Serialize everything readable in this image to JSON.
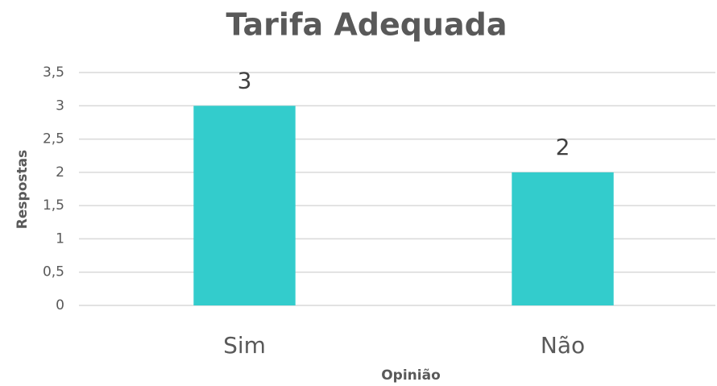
{
  "chart_data": {
    "type": "bar",
    "title": "Tarifa Adequada",
    "x_label": "Opinião",
    "y_label": "Respostas",
    "categories": [
      "Sim",
      "Não"
    ],
    "values": [
      3,
      2
    ],
    "color": "#33cccc",
    "ylim": [
      0,
      3.5
    ],
    "yticks": [
      0,
      {
        "value": 0.5,
        "label": "0,5"
      },
      1,
      {
        "value": 1.5,
        "label": "1,5"
      },
      2,
      {
        "value": 2.5,
        "label": "2,5"
      },
      3,
      {
        "value": 3.5,
        "label": "3,5"
      }
    ],
    "grid": true
  }
}
